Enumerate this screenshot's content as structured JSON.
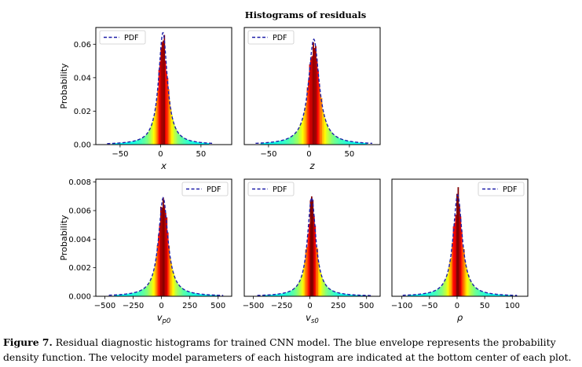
{
  "figure": {
    "suptitle": "Histograms of residuals",
    "caption_label": "Figure 7.",
    "caption_text": " Residual diagnostic histograms for trained CNN model. The blue envelope represents the probability density function. The velocity model parameters of each histogram are indicated at the bottom center of each plot."
  },
  "colors": {
    "pdf_line": "#1f1fa8",
    "hist_colormap": "jet",
    "frame": "#000000"
  },
  "chart_data": [
    {
      "type": "histogram",
      "xlabel": "x",
      "ylabel": "Probability",
      "xlim": [
        -80,
        88
      ],
      "ylim": [
        0,
        0.07
      ],
      "xticks": [
        -50,
        0,
        50
      ],
      "yticks": [
        0.0,
        0.02,
        0.04,
        0.06
      ],
      "ytick_labels": [
        "0.00",
        "0.02",
        "0.04",
        "0.06"
      ],
      "legend": [
        "PDF"
      ],
      "legend_position": "top-left",
      "peak_x": 3,
      "peak_y": 0.067,
      "spread": 6.5,
      "support": [
        -60,
        60
      ]
    },
    {
      "type": "histogram",
      "xlabel": "z",
      "ylabel": "",
      "xlim": [
        -80,
        88
      ],
      "ylim": [
        0,
        0.07
      ],
      "xticks": [
        -50,
        0,
        50
      ],
      "yticks": [],
      "ytick_labels": [],
      "legend": [
        "PDF"
      ],
      "legend_position": "top-left",
      "peak_x": 6,
      "peak_y": 0.063,
      "spread": 8,
      "support": [
        -60,
        72
      ]
    },
    {
      "type": "histogram",
      "xlabel": "v_p0",
      "ylabel": "Probability",
      "xlim": [
        -580,
        620
      ],
      "ylim": [
        0,
        0.0082
      ],
      "xticks": [
        -500,
        -250,
        0,
        250,
        500
      ],
      "yticks": [
        0.0,
        0.002,
        0.004,
        0.006,
        0.008
      ],
      "ytick_labels": [
        "0.000",
        "0.002",
        "0.004",
        "0.006",
        "0.008"
      ],
      "legend": [
        "PDF"
      ],
      "legend_position": "top-right",
      "peak_x": 15,
      "peak_y": 0.0069,
      "spread": 50,
      "support": [
        -420,
        500
      ]
    },
    {
      "type": "histogram",
      "xlabel": "v_s0",
      "ylabel": "",
      "xlim": [
        -580,
        620
      ],
      "ylim": [
        0,
        0.0082
      ],
      "xticks": [
        -500,
        -250,
        0,
        250,
        500
      ],
      "yticks": [],
      "ytick_labels": [],
      "legend": [
        "PDF"
      ],
      "legend_position": "top-left",
      "peak_x": 15,
      "peak_y": 0.0069,
      "spread": 45,
      "support": [
        -420,
        500
      ]
    },
    {
      "type": "histogram",
      "xlabel": "ρ",
      "ylabel": "",
      "xlim": [
        -118,
        128
      ],
      "ylim": [
        0,
        0.0082
      ],
      "xticks": [
        -100,
        -50,
        0,
        50,
        100
      ],
      "yticks": [],
      "ytick_labels": [],
      "legend": [
        "PDF"
      ],
      "legend_position": "top-right",
      "peak_x": 1,
      "peak_y": 0.0071,
      "spread": 10,
      "support": [
        -90,
        100
      ]
    }
  ]
}
